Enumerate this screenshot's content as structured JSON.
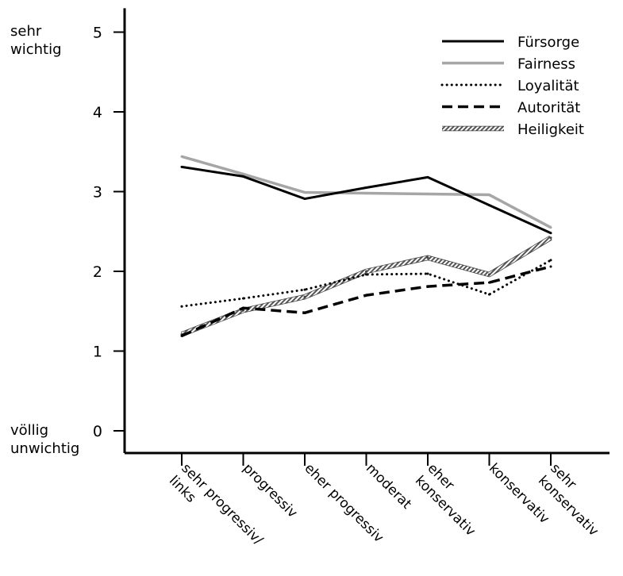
{
  "chart_data": {
    "type": "line",
    "title": "",
    "xlabel": "",
    "ylabel": "",
    "ylim": [
      0,
      5.3
    ],
    "yticks": [
      0,
      1,
      2,
      3,
      4,
      5
    ],
    "y_top_label": [
      "sehr",
      "wichtig"
    ],
    "y_bottom_label": [
      "völlig",
      "unwichtig"
    ],
    "categories": [
      [
        "sehr progressiv/",
        "links"
      ],
      [
        "progressiv"
      ],
      [
        "eher progressiv"
      ],
      [
        "moderat"
      ],
      [
        "eher",
        "konservativ"
      ],
      [
        "konservativ"
      ],
      [
        "sehr",
        "konservativ"
      ]
    ],
    "legend": {
      "position": "top-right",
      "show": true
    },
    "grid": false,
    "series": [
      {
        "name": "Fürsorge",
        "style": "solid-black",
        "values": [
          3.31,
          3.19,
          2.91,
          3.05,
          3.18,
          2.83,
          2.48
        ]
      },
      {
        "name": "Fairness",
        "style": "solid-gray",
        "values": [
          3.44,
          3.22,
          2.99,
          2.98,
          2.97,
          2.96,
          2.55
        ]
      },
      {
        "name": "Loyalität",
        "style": "dotted-black",
        "values": [
          1.56,
          1.66,
          1.77,
          1.96,
          1.97,
          1.71,
          2.14
        ]
      },
      {
        "name": "Autorität",
        "style": "dashed-black",
        "values": [
          1.19,
          1.54,
          1.48,
          1.7,
          1.81,
          1.86,
          2.06
        ]
      },
      {
        "name": "Heiligkeit",
        "style": "hatched",
        "values": [
          1.21,
          1.51,
          1.68,
          2.0,
          2.17,
          1.96,
          2.42
        ]
      }
    ],
    "colors": {
      "black": "#000000",
      "gray": "#a6a6a6"
    }
  }
}
